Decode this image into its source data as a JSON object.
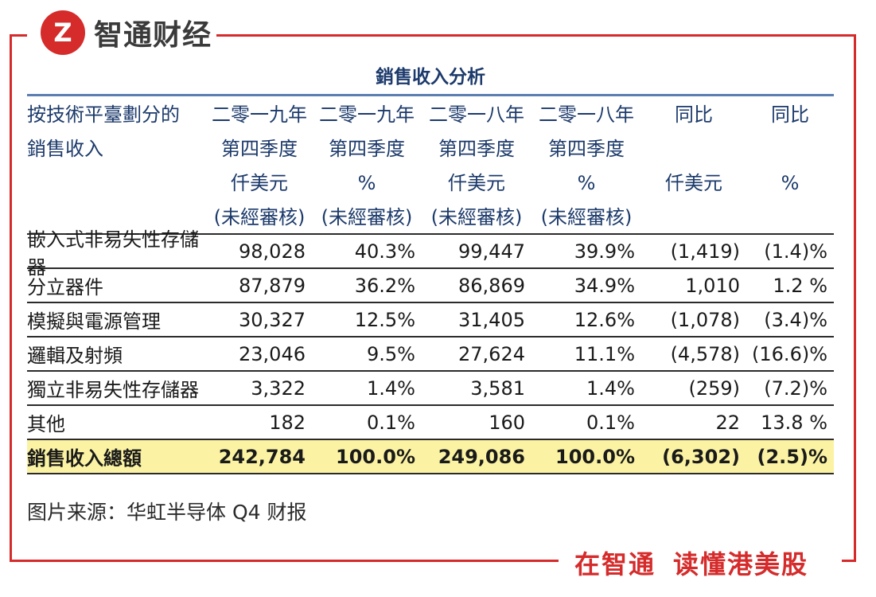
{
  "brand": {
    "logo_glyph": "Z",
    "name": "智通财经"
  },
  "slogan": {
    "part1": "在智通",
    "part2": "读懂港美股"
  },
  "table": {
    "title": "銷售收入分析",
    "header": [
      [
        "按技術平臺劃分的",
        "銷售收入"
      ],
      [
        "二零一九年",
        "第四季度",
        "仟美元",
        "(未經審核)"
      ],
      [
        "二零一九年",
        "第四季度",
        "%",
        "(未經審核)"
      ],
      [
        "二零一八年",
        "第四季度",
        "仟美元",
        "(未經審核)"
      ],
      [
        "二零一八年",
        "第四季度",
        "%",
        "(未經審核)"
      ],
      [
        "同比",
        "",
        "仟美元",
        ""
      ],
      [
        "同比",
        "",
        "%",
        ""
      ]
    ],
    "rows": [
      [
        "嵌入式非易失性存儲器",
        "98,028",
        "40.3%",
        "99,447",
        "39.9%",
        "(1,419)",
        "(1.4)%"
      ],
      [
        "分立器件",
        "87,879",
        "36.2%",
        "86,869",
        "34.9%",
        "1,010",
        "1.2 %"
      ],
      [
        "模擬與電源管理",
        "30,327",
        "12.5%",
        "31,405",
        "12.6%",
        "(1,078)",
        "(3.4)%"
      ],
      [
        "邏輯及射頻",
        "23,046",
        "9.5%",
        "27,624",
        "11.1%",
        "(4,578)",
        "(16.6)%"
      ],
      [
        "獨立非易失性存儲器",
        "3,322",
        "1.4%",
        "3,581",
        "1.4%",
        "(259)",
        "(7.2)%"
      ],
      [
        "其他",
        "182",
        "0.1%",
        "160",
        "0.1%",
        "22",
        "13.8 %"
      ]
    ],
    "total": [
      "銷售收入總額",
      "242,784",
      "100.0%",
      "249,086",
      "100.0%",
      "(6,302)",
      "(2.5)%"
    ]
  },
  "source": "图片来源：华虹半导体 Q4 财报",
  "colors": {
    "frame": "#d52b2b",
    "header_text": "#1c3a6b",
    "total_bg": "#fbf3a3"
  }
}
